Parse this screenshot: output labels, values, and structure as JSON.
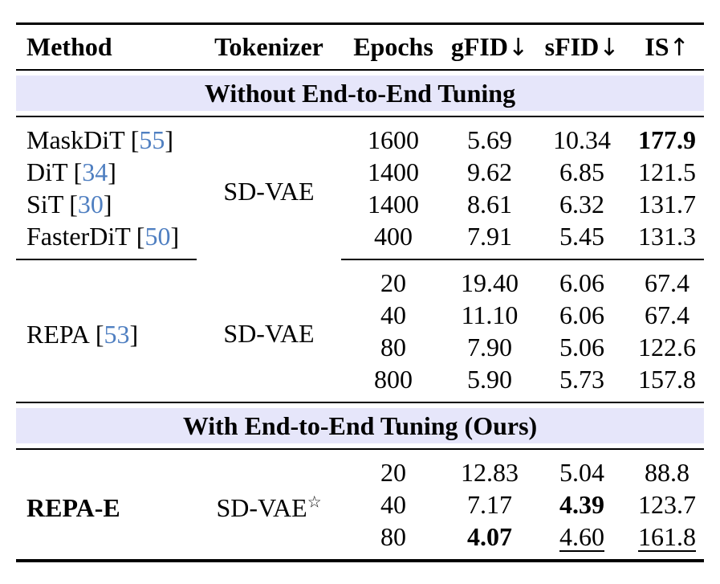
{
  "colors": {
    "band_background": "#e6e6fa",
    "citation_blue": "#4f7fc1",
    "text": "#000000"
  },
  "glyphs": {
    "down_arrow": "↓",
    "up_arrow": "↑"
  },
  "punct": {
    "open": "[",
    "close": "]"
  },
  "header": {
    "method": "Method",
    "tokenizer": "Tokenizer",
    "epochs": "Epochs",
    "gfid": "gFID",
    "sfid": "sFID",
    "is": "IS"
  },
  "sections": {
    "without": {
      "title": "Without End-to-End Tuning"
    },
    "with": {
      "title": "With End-to-End Tuning (Ours)"
    }
  },
  "block1": {
    "tokenizer": "SD-VAE",
    "rows": [
      {
        "name": "MaskDiT",
        "cite": "55",
        "epochs": "1600",
        "gfid": "5.69",
        "sfid": "10.34",
        "is": "177.9"
      },
      {
        "name": "DiT",
        "cite": "34",
        "epochs": "1400",
        "gfid": "9.62",
        "sfid": "6.85",
        "is": "121.5"
      },
      {
        "name": "SiT",
        "cite": "30",
        "epochs": "1400",
        "gfid": "8.61",
        "sfid": "6.32",
        "is": "131.7"
      },
      {
        "name": "FasterDiT",
        "cite": "50",
        "epochs": "400",
        "gfid": "7.91",
        "sfid": "5.45",
        "is": "131.3"
      }
    ]
  },
  "block2": {
    "name": "REPA",
    "cite": "53",
    "tokenizer": "SD-VAE",
    "rows": [
      {
        "epochs": "20",
        "gfid": "19.40",
        "sfid": "6.06",
        "is": "67.4"
      },
      {
        "epochs": "40",
        "gfid": "11.10",
        "sfid": "6.06",
        "is": "67.4"
      },
      {
        "epochs": "80",
        "gfid": "7.90",
        "sfid": "5.06",
        "is": "122.6"
      },
      {
        "epochs": "800",
        "gfid": "5.90",
        "sfid": "5.73",
        "is": "157.8"
      }
    ]
  },
  "block3": {
    "name": "REPA-E",
    "tokenizer": "SD-VAE",
    "tokenizer_star": "☆",
    "rows": [
      {
        "epochs": "20",
        "gfid": "12.83",
        "sfid": "5.04",
        "is": "88.8"
      },
      {
        "epochs": "40",
        "gfid": "7.17",
        "sfid": "4.39",
        "is": "123.7"
      },
      {
        "epochs": "80",
        "gfid": "4.07",
        "sfid": "4.60",
        "is": "161.8"
      }
    ]
  }
}
